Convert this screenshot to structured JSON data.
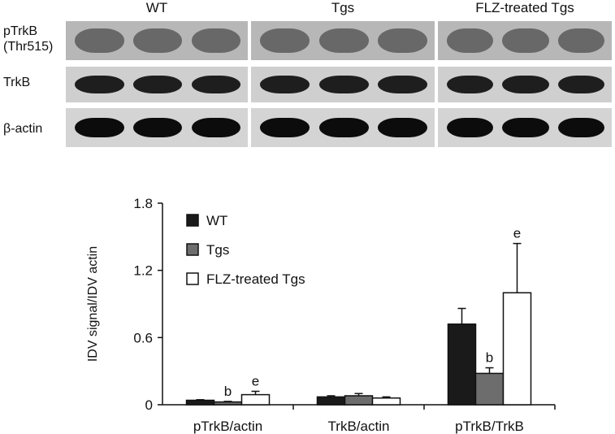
{
  "blot": {
    "groups": [
      "WT",
      "Tgs",
      "FLZ-treated Tgs"
    ],
    "rows": [
      {
        "label": "pTrkB",
        "sublabel": "(Thr515)",
        "tone": "faint"
      },
      {
        "label": "TrkB",
        "sublabel": "",
        "tone": "medium"
      },
      {
        "label": "β-actin",
        "sublabel": "",
        "tone": "strong"
      }
    ]
  },
  "chart_data": {
    "type": "bar",
    "ylabel": "IDV signal/IDV actin",
    "xlabel": "",
    "ylim": [
      0,
      1.8
    ],
    "yticks": [
      "0",
      "0.6",
      "1.2",
      "1.8"
    ],
    "categories": [
      "pTrkB/actin",
      "TrkB/actin",
      "pTrkB/TrkB"
    ],
    "series": [
      {
        "name": "WT",
        "color": "#1a1a1a",
        "values": [
          0.04,
          0.07,
          0.72
        ],
        "errors": [
          0.005,
          0.01,
          0.14
        ],
        "labels": [
          "",
          "",
          ""
        ]
      },
      {
        "name": "Tgs",
        "color": "#6d6d6d",
        "values": [
          0.025,
          0.08,
          0.28
        ],
        "errors": [
          0.005,
          0.02,
          0.05
        ],
        "labels": [
          "b",
          "",
          "b"
        ]
      },
      {
        "name": "FLZ-treated Tgs",
        "color": "#ffffff",
        "values": [
          0.09,
          0.06,
          1.0
        ],
        "errors": [
          0.03,
          0.01,
          0.44
        ],
        "labels": [
          "e",
          "",
          "e"
        ]
      }
    ],
    "legend_position": "top-left",
    "grid": false
  }
}
